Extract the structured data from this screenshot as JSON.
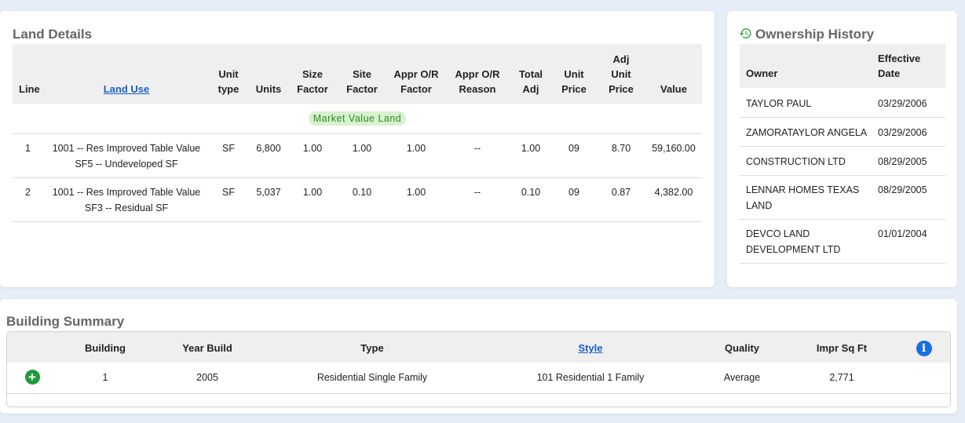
{
  "land": {
    "title": "Land Details",
    "columns": {
      "line": "Line",
      "land_use": "Land Use",
      "unit_type": [
        "Unit",
        "type"
      ],
      "units": "Units",
      "size_factor": [
        "Size",
        "Factor"
      ],
      "site_factor": [
        "Site",
        "Factor"
      ],
      "appr_or_factor": [
        "Appr O/R",
        "Factor"
      ],
      "appr_or_reason": [
        "Appr O/R",
        "Reason"
      ],
      "total_adj": [
        "Total",
        "Adj"
      ],
      "unit_price": [
        "Unit",
        "Price"
      ],
      "adj_unit_price": [
        "Adj",
        "Unit",
        "Price"
      ],
      "value": "Value"
    },
    "group_label": "Market Value Land",
    "rows": [
      {
        "line": "1",
        "land_use": [
          "1001 -- Res Improved Table Value",
          "SF5 -- Undeveloped SF"
        ],
        "unit_type": "SF",
        "units": "6,800",
        "size_factor": "1.00",
        "site_factor": "1.00",
        "appr_or_factor": "1.00",
        "appr_or_reason": "--",
        "total_adj": "1.00",
        "unit_price": "09",
        "adj_unit_price": "8.70",
        "value": "59,160.00"
      },
      {
        "line": "2",
        "land_use": [
          "1001 -- Res Improved Table Value",
          "SF3 -- Residual SF"
        ],
        "unit_type": "SF",
        "units": "5,037",
        "size_factor": "1.00",
        "site_factor": "0.10",
        "appr_or_factor": "1.00",
        "appr_or_reason": "--",
        "total_adj": "0.10",
        "unit_price": "09",
        "adj_unit_price": "0.87",
        "value": "4,382.00"
      }
    ]
  },
  "ownership": {
    "title": "Ownership History",
    "icon": "history-icon",
    "columns": {
      "owner": "Owner",
      "effective_date": [
        "Effective",
        "Date"
      ]
    },
    "rows": [
      {
        "owner": "TAYLOR PAUL",
        "date": "03/29/2006"
      },
      {
        "owner": "ZAMORATAYLOR ANGELA",
        "date": "03/29/2006"
      },
      {
        "owner": "CONSTRUCTION LTD",
        "date": "08/29/2005"
      },
      {
        "owner": "LENNAR HOMES TEXAS LAND",
        "date": "08/29/2005"
      },
      {
        "owner": "DEVCO LAND DEVELOPMENT LTD",
        "date": "01/01/2004"
      }
    ]
  },
  "building": {
    "title": "Building Summary",
    "columns": {
      "building": "Building",
      "year_build": "Year Build",
      "type": "Type",
      "style": "Style",
      "quality": "Quality",
      "impr_sq_ft": "Impr Sq Ft"
    },
    "info_icon": "info-icon",
    "expand_icon": "plus-circle-icon",
    "info_glyph": "i",
    "expand_glyph": "+",
    "rows": [
      {
        "building": "1",
        "year_build": "2005",
        "type": "Residential Single Family",
        "style": "101 Residential 1 Family",
        "quality": "Average",
        "impr_sq_ft": "2,771"
      }
    ]
  },
  "colors": {
    "accent_link": "#1a5fc7",
    "history_icon": "#2aa83a",
    "pill_bg": "#d6f2cf",
    "pill_text": "#2e8a23",
    "expand": "#1e9a3a",
    "info": "#1a6fe0"
  }
}
